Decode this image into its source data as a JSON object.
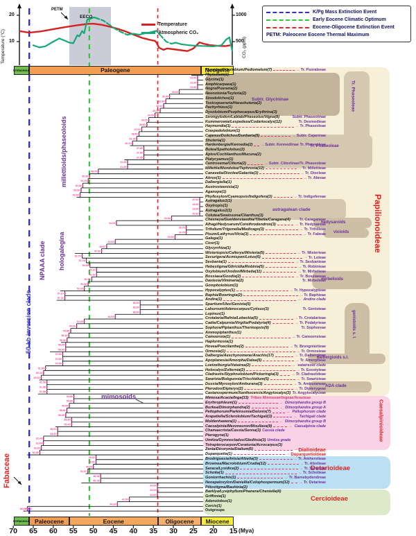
{
  "climate": {
    "temp_axis": {
      "label": "Temperature (°C)",
      "ticks": [
        "20",
        "10"
      ]
    },
    "co2_axis": {
      "label": "CO₂ (ppm)",
      "ticks": [
        "1000",
        "500"
      ]
    },
    "series_legend": [
      {
        "label": "Temperature",
        "color": "#d42222"
      },
      {
        "label": "Atmospheric CO₂",
        "color": "#17a87a"
      }
    ],
    "annotations": {
      "petm": "PETM",
      "eeco": "EECO"
    },
    "event_legend": {
      "items": [
        {
          "label": "K/Pg Mass Extinction Event",
          "color": "#2d2de8"
        },
        {
          "label": "Early Eocene Climatic Optimum",
          "color": "#30c830"
        },
        {
          "label": "Eocene-Oligocene Extinction Event",
          "color": "#e82828"
        }
      ],
      "footnote": "PETM: Paleocene Eocene Thermal Maximum"
    }
  },
  "chart_data": {
    "type": "line",
    "x_unit": "Mya",
    "x_range": [
      70,
      15
    ],
    "series": [
      {
        "name": "Temperature",
        "unit": "°C",
        "color": "#d42222",
        "axis_ticks": [
          20,
          10
        ],
        "points": [
          [
            68.5,
            14.0
          ],
          [
            66,
            13.4
          ],
          [
            63,
            13.9
          ],
          [
            60,
            14.7
          ],
          [
            57,
            15.5
          ],
          [
            54,
            16.2
          ],
          [
            51.5,
            16.7
          ],
          [
            50,
            16.8
          ],
          [
            48,
            16.4
          ],
          [
            46,
            15.7
          ],
          [
            44,
            14.9
          ],
          [
            42,
            13.9
          ],
          [
            40,
            12.7
          ],
          [
            38,
            11.5
          ],
          [
            36,
            10.7
          ],
          [
            34.6,
            10.3
          ],
          [
            34.2,
            9.6
          ],
          [
            33.6,
            7.7
          ],
          [
            32.5,
            6.9
          ],
          [
            31.5,
            7.4
          ],
          [
            30,
            7.1
          ],
          [
            28,
            6.7
          ],
          [
            26.5,
            6.4
          ],
          [
            25,
            7.4
          ],
          [
            23.5,
            9.7
          ],
          [
            22.5,
            9.2
          ],
          [
            21,
            8.7
          ],
          [
            19,
            8.4
          ],
          [
            17,
            8.3
          ],
          [
            15.8,
            8.6
          ]
        ]
      },
      {
        "name": "Atmospheric CO₂",
        "unit": "ppm",
        "color": "#17a87a",
        "axis_ticks": [
          1000,
          500
        ],
        "dash_ranges": [
          [
            49,
            41.5
          ],
          [
            34.3,
            30.5
          ]
        ],
        "points": [
          [
            65,
            430
          ],
          [
            63.5,
            390
          ],
          [
            62,
            410
          ],
          [
            60,
            500
          ],
          [
            58.5,
            560
          ],
          [
            57.5,
            530
          ],
          [
            56,
            480
          ],
          [
            55,
            470
          ],
          [
            54,
            620
          ],
          [
            53.5,
            600
          ],
          [
            52.8,
            700
          ],
          [
            52.3,
            660
          ],
          [
            51.5,
            920
          ],
          [
            50.5,
            940
          ],
          [
            49.8,
            960
          ],
          [
            49,
            940
          ],
          [
            47.5,
            900
          ],
          [
            46,
            820
          ],
          [
            44.5,
            740
          ],
          [
            43,
            680
          ],
          [
            41.5,
            630
          ],
          [
            40,
            650
          ],
          [
            38.5,
            630
          ],
          [
            37,
            660
          ],
          [
            35.5,
            680
          ],
          [
            34.3,
            705
          ],
          [
            33,
            600
          ],
          [
            31.8,
            500
          ],
          [
            30.5,
            460
          ],
          [
            29.5,
            480
          ],
          [
            28,
            450
          ],
          [
            26,
            430
          ],
          [
            24,
            420
          ],
          [
            22,
            415
          ],
          [
            20,
            410
          ],
          [
            18,
            430
          ],
          [
            16.8,
            540
          ],
          [
            16,
            580
          ],
          [
            15.3,
            330
          ]
        ]
      }
    ],
    "events": [
      {
        "name": "K/Pg Mass Extinction Event",
        "mya": 66,
        "color": "#2d2de8"
      },
      {
        "name": "Early Eocene Climatic Optimum",
        "mya": 51,
        "color": "#30c830"
      },
      {
        "name": "Eocene-Oligocene Extinction Event",
        "mya": 33.9,
        "color": "#e82828"
      }
    ]
  },
  "timescale_top": {
    "segments": [
      {
        "name": "Cretaceous",
        "from": 70,
        "to": 66,
        "color": "#6ebf4e",
        "small": true
      },
      {
        "name": "Paleogene",
        "from": 66,
        "to": 23,
        "color": "#f29d52"
      },
      {
        "name": "Neogene",
        "from": 23,
        "to": 15,
        "color": "#f8e838"
      }
    ]
  },
  "timescale_bottom": {
    "segments": [
      {
        "name": "Cretaceous",
        "from": 70,
        "to": 66,
        "color": "#6ebf4e",
        "small": true
      },
      {
        "name": "Paleocene",
        "from": 66,
        "to": 56,
        "color": "#f29d52"
      },
      {
        "name": "Eocene",
        "from": 56,
        "to": 33.9,
        "color": "#f4a85e"
      },
      {
        "name": "Oligocene",
        "from": 33.9,
        "to": 23,
        "color": "#f6b06a"
      },
      {
        "name": "Miocene",
        "from": 23,
        "to": 15,
        "color": "#f8ef35"
      }
    ],
    "ticks": [
      "70",
      "65",
      "60",
      "55",
      "50",
      "45",
      "40",
      "35",
      "30",
      "25",
      "20",
      "15"
    ],
    "unit": "(Mya)"
  },
  "clade_labels_left": [
    {
      "label": "millettioids/phaseoloids",
      "color": "#6a2d9e"
    },
    {
      "label": "NPAAA clade",
      "color": "#6a2d9e"
    },
    {
      "label": "hologalegina",
      "color": "#6a2d9e"
    },
    {
      "label": "50-kb inversion clade",
      "color": "#3a3ac8"
    },
    {
      "label": "mimosoids",
      "color": "#6a2d9e"
    },
    {
      "label": "Fabaceae",
      "color": "#e21f1f"
    }
  ],
  "groups": [
    {
      "label": "Papilionoideae",
      "color": "#e21f1f"
    },
    {
      "label": "Tr. Phaseoleae",
      "color": "#6a2d9e"
    },
    {
      "label": "Subtr. Glycininae",
      "color": "#6a2d9e"
    },
    {
      "label": "astragalean clade",
      "color": "#6a2d9e"
    },
    {
      "label": "hedysaroids",
      "color": "#6a2d9e"
    },
    {
      "label": "vicioids",
      "color": "#6a2d9e"
    },
    {
      "label": "mirbelioids",
      "color": "#6a2d9e"
    },
    {
      "label": "genistoids s. l.",
      "color": "#6a2d9e"
    },
    {
      "label": "dalbergioids s.l.",
      "color": "#6a2d9e"
    },
    {
      "label": "ADA clade",
      "color": "#6a2d9e"
    },
    {
      "label": "Caesalpinioideae",
      "color": "#e21f1f"
    },
    {
      "label": "Detarioideae",
      "color": "#e21f1f"
    },
    {
      "label": "Cercioideae",
      "color": "#e21f1f"
    },
    {
      "label": "Tr. Phaseoleae",
      "color": "#6a2d9e"
    }
  ],
  "tree": {
    "root_age": "67.28",
    "tips": [
      {
        "n": "Psoralea/Otholobium/Pediomelum(7)",
        "a": 26.96,
        "d": true,
        "t": "Tr. Psoraleeae"
      },
      {
        "n": "Phylacium(1)",
        "a": 25.41
      },
      {
        "n": "Glycine(1)",
        "a": 23.96
      },
      {
        "n": "Amphicarpaea(1)",
        "a": 23.96
      },
      {
        "n": "Nogra/Pueraria(2)",
        "a": 28.53
      },
      {
        "n": "Neonotonia/Teyleria(2)",
        "a": 30.95
      },
      {
        "n": "Sinodolichos(1)",
        "a": 31.9
      },
      {
        "n": "Toxicopueraria/Harashuteria(2)",
        "a": 32.44
      },
      {
        "n": "Pachyrhizus(1)",
        "a": 33.3
      },
      {
        "n": "Dysolobium/Psophocarpus/Erythrina(3)",
        "a": 34.59
      },
      {
        "n": "Strongylodon/Lablab/Phaseolus/Vigna(8)",
        "a": 36.15,
        "t": "Subtr. Phaseolinae"
      },
      {
        "n": "Kummerowia/Lespedeza/Codariocalyx(12)",
        "a": 36.63,
        "t": "Tr. Desmodieae"
      },
      {
        "n": "Haymondia(1)",
        "a": 37.91,
        "d": true,
        "t": "Tr. Phaseoleae"
      },
      {
        "n": "Craspedolobium(1)",
        "a": 38.6
      },
      {
        "n": "Cajanus/Dolichos/Dunbaria(5)",
        "a": 39.16,
        "d": true,
        "t": "Subtr. Cajaninae"
      },
      {
        "n": "Shuteria(1)",
        "a": 40.21
      },
      {
        "n": "Hardenbergia/Kennedia(2)",
        "a": 40.85,
        "d": true,
        "t": "Subtr. Kennediinae  Tr. Phaseoleae"
      },
      {
        "n": "Butea/Spatholobus(2)",
        "a": 37.38
      },
      {
        "n": "Apios/Cochlianthus/Mucuna(2)",
        "a": 37.38
      },
      {
        "n": "Platycyamus(1)",
        "a": 42.26
      },
      {
        "n": "Centrosema/Clitoria(2)",
        "a": 41.45,
        "d": true,
        "t": "Subtr. Clitoriinae/Tr. Phaseoleae"
      },
      {
        "n": "Millettia/Mundulea/Tephrosia(12)",
        "a": 48.76,
        "d": true,
        "t": "Tr. Millettieae"
      },
      {
        "n": "Canavalia/Dioclea/Galactia(3)",
        "a": 50.95,
        "d": true,
        "t": "Tr. Diocleae"
      },
      {
        "n": "Abrus(1)",
        "a": 51.29,
        "d": true,
        "t": "Tr. Abreae"
      },
      {
        "n": "Dalbergiella(1)",
        "a": 52.64
      },
      {
        "n": "Austrosteenisia(1)",
        "a": 53.06
      },
      {
        "n": "Aganope(1)",
        "a": 53.3
      },
      {
        "n": "Phylloxylon/Cyamopsis/Indigofera(3)",
        "a": 54.16,
        "d": true,
        "t": "Tr. Indigofereae"
      },
      {
        "n": "Astragalus1(1)",
        "a": 20.92
      },
      {
        "n": "Oxytropis(1)",
        "a": 19.0
      },
      {
        "n": "Astragalus2(1)",
        "a": 20.92
      },
      {
        "n": "Colutea/Swainsona/Clianthus(3)",
        "a": 30.46
      },
      {
        "n": "Chesneya/Gueldenstaedtia/Tibetia/Caragana(4)",
        "a": 44.25,
        "t": "Tr. Caraganeae"
      },
      {
        "n": "Alhagi/Hedysarum/Corethrodendron(3)",
        "a": 44.25,
        "d": true,
        "t": "Tr. Hedysareae"
      },
      {
        "n": "Trifolium/Trigonella/Medicago(3)",
        "a": 26.79,
        "d": true,
        "t": "Tr. Trifolieae"
      },
      {
        "n": "Pisum/Lathyrus/Vicia(3)",
        "a": 29.59,
        "d": true,
        "t": "Tr. Fabeae"
      },
      {
        "n": "Galega(1)",
        "a": 44.53
      },
      {
        "n": "Cicer(1)",
        "a": 46.67
      },
      {
        "n": "Glycyrrhiza(1)",
        "a": 47.92
      },
      {
        "n": "Wisteriopsis/Callerya/Wisteria(5)",
        "a": 54.62,
        "d": true,
        "t": "Tr. Wisterieae"
      },
      {
        "n": "Securigera/Acmispon/Lotus(6)",
        "a": 52.79,
        "d": true,
        "t": "Tr. Loteae"
      },
      {
        "n": "Sesbania(1)",
        "a": 51.76,
        "d": true,
        "t": "Tr. Sesbanieae"
      },
      {
        "n": "Hebestigma/Gliricidia/Robinia(5)",
        "a": 50.85,
        "d": true,
        "t": "Tr. Robinieae"
      },
      {
        "n": "Oxylobium/Urodon/Mirbelia(11)",
        "a": 49.2,
        "d": true,
        "t": "Tr. Mirbelieae"
      },
      {
        "n": "Bossiaea/Goodia(2)",
        "a": 50.4,
        "d": true,
        "t": "Tr. Bossiaeeae"
      },
      {
        "n": "Daviesia/Viminaria(2)",
        "a": 51.3,
        "t": "Tr. Mirbelieae"
      },
      {
        "n": "Gompholobium(1)",
        "a": 52.26
      },
      {
        "n": "Hypocalyptus(1)",
        "a": 58.24,
        "d": true,
        "t": "Tr. Hypocalypteae"
      },
      {
        "n": "Baphia/Bowringia(2)",
        "a": 57.1,
        "d": true,
        "t": "Tr. Baphieae"
      },
      {
        "n": "Andira(1)",
        "a": 59.16,
        "d": true,
        "t": "Andira clade",
        "s": "pi"
      },
      {
        "n": "Spartium/Ulex/Genista(5)",
        "a": 38.29
      },
      {
        "n": "Laburnum/Adenocarpus/Cytisus(3)",
        "a": 38.29,
        "t": "Tr. Genisteae"
      },
      {
        "n": "Lupinus(1)",
        "a": 44.53
      },
      {
        "n": "Crotalaria/Rafnia/Lebeckia(5)",
        "a": 52.26,
        "d": true,
        "t": "Tr. Crotalarieae"
      },
      {
        "n": "Cadia/Calpurnia/Virgilia/Podalyria(4)",
        "a": 54.16,
        "d": true,
        "t": "Tr. Podalyrieae"
      },
      {
        "n": "Sophora/Piptanthus/Thermopsis(9)",
        "a": 55.66,
        "t": "Tr. Sophoreae"
      },
      {
        "n": "Ammopiptanthus(1)",
        "a": 56.12
      },
      {
        "n": "Camoensia(1)",
        "a": 56.55,
        "d": true,
        "t": "Tr. Camoensieae"
      },
      {
        "n": "Haplormosia(1)",
        "a": 58.08
      },
      {
        "n": "Hovea/Poecilanthe(2)",
        "a": 56.9,
        "d": true,
        "t": "Tr. Brongniartieae"
      },
      {
        "n": "Ormosia(1)",
        "a": 60.86,
        "d": true,
        "t": "Tr. Ormosieae"
      },
      {
        "n": "Dalbergia/Aeschynomene/Arachis(17)",
        "a": 57.65,
        "d": true,
        "t": "Tr. Dalbergieae"
      },
      {
        "n": "Apoplanesia/Amorpha/Dalea(5)",
        "a": 57.65,
        "d": true,
        "t": "Tr. Amorpheae"
      },
      {
        "n": "Luetzelburgia/Vatairea(2)",
        "a": 61.95,
        "d": true,
        "t": "vataireoid clade",
        "s": "pi"
      },
      {
        "n": "Holocalyx/Zollernia(2)",
        "a": 62.43,
        "d": true,
        "t": "Tr. Exostyleae"
      },
      {
        "n": "Cladrastis/Styphnolobium/Pickeringia(3)",
        "a": 63.02,
        "d": true,
        "t": "Tr. Cladrastideae"
      },
      {
        "n": "Swartzia/Bobgunnia/Trischidium(5)",
        "a": 63.5,
        "d": true,
        "t": "Tr. Swartzieae"
      },
      {
        "n": "Dussia/Myroxylon/Amburana(3)",
        "a": 61.58,
        "d": true,
        "t": "Tr. Amburaneae"
      },
      {
        "n": "Pterodon/Dipteryx(2)",
        "a": 61.58,
        "d": true,
        "t": "Tr. Dipterygeae"
      },
      {
        "n": "Castanospermum/Xanthocercis/Angylocalyx(3)",
        "a": 63.81,
        "t": "Tr. Angylocalyceae"
      },
      {
        "n": "Mimosa/Acacia/Inga(33)",
        "a": 54.86,
        "t": "Tribes Mimoseae/Ingeae/Acacieae",
        "s": "m"
      },
      {
        "n": "Erythrophleum(1)",
        "a": 56.0,
        "d": true,
        "t": "Dimorphandra group B",
        "s": "pi"
      },
      {
        "n": "Burkea/Dimorphandra(2)",
        "a": 56.6,
        "d": true,
        "t": "Dimorphandra group A",
        "s": "pi"
      },
      {
        "n": "Peltophorum/Parkinsonia/Delonix(7)",
        "a": 56.89,
        "d": true,
        "t": "Peltophorum clade",
        "s": "pi"
      },
      {
        "n": "Arapatiella/Sclerolobium/Tachigali(3)",
        "a": 57.08,
        "d": true,
        "t": "Tachigali clade",
        "s": "pi"
      },
      {
        "n": "Moldenhawera(1)",
        "a": 55.42,
        "d": true,
        "t": "Dimorphandra group B",
        "s": "pi"
      },
      {
        "n": "Caesalpinia/Mezoneuron/Moullava(9)",
        "a": 59.48,
        "d": true,
        "t": "Caesalpinia clade",
        "s": "pi"
      },
      {
        "n": "Chamaecrista/Cassia/Senna(3)",
        "a": 58.91,
        "t": "Cassia clade",
        "s": "pi"
      },
      {
        "n": "Pterogyne(1)",
        "a": 62.43
      },
      {
        "n": "Umtiza/Gymnocladus/Gleditsia(3)",
        "a": 62.48,
        "t": "Umtiza grade",
        "s": "pi"
      },
      {
        "n": "Tetrapterocarpon/Ceratonia/Acrocarpus(3)",
        "a": 63.0
      },
      {
        "n": "Zenia/Dicorynia/Dialium(6)",
        "a": 63.36,
        "d": true,
        "t": "Dialioideae",
        "s": "r"
      },
      {
        "n": "Duparquetia(1)",
        "a": 66.53,
        "d": true,
        "t": "Duparquetioideae",
        "s": "r2"
      },
      {
        "n": "Brodriguesia/Intsia/Afzelia(3)",
        "a": 49.32,
        "d": true,
        "t": "Tr. Amherstieae"
      },
      {
        "n": "Brownea/Macrolobium/Crudia(12)",
        "a": 49.99,
        "d": true,
        "t": "Tr. Afzelieae"
      },
      {
        "n": "Saraca/Lysidice(2)",
        "a": 51.37,
        "d": true,
        "t": "Tr. Saraceae"
      },
      {
        "n": "Schotia(1)",
        "a": 51.92,
        "d": true,
        "t": "Tr. Schotieae"
      },
      {
        "n": "Goniorrhachis(1)",
        "a": 48.18,
        "d": true,
        "t": "Tr. Barnebydendreae"
      },
      {
        "n": "Neoapaloxylon/Daniellia/Colophospermum(12)",
        "a": 53.0,
        "d": true,
        "t": "Tr. Detarieae"
      },
      {
        "n": "Piliostigma/Bauhinia(2)",
        "a": 34.0
      },
      {
        "n": "Barklya/Lysiphyllum/Phanera/Cheniella(4)",
        "a": 34.0
      },
      {
        "n": "Griffonia(1)",
        "a": 41.0
      },
      {
        "n": "Adenolobus(1)",
        "a": 44.0
      },
      {
        "n": "Cercis(1)",
        "a": 66.46
      },
      {
        "n": "Outgroups",
        "a": 67.28,
        "roman": true
      }
    ]
  }
}
